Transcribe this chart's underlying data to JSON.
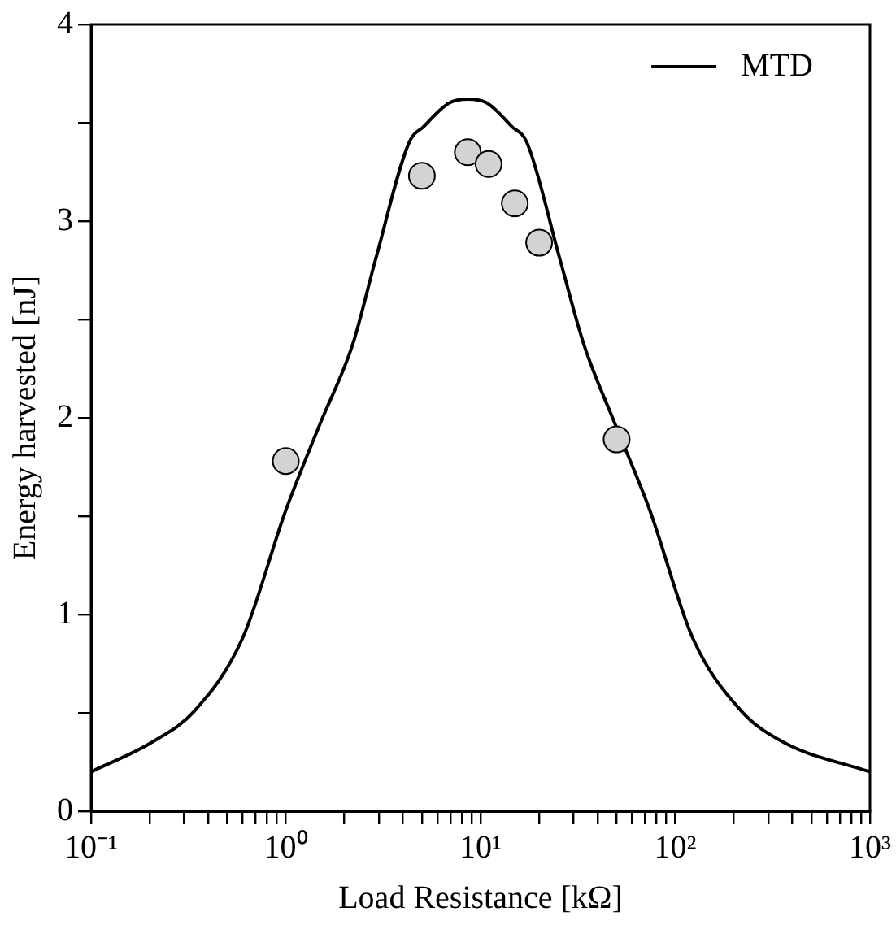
{
  "chart_data": {
    "type": "scatter",
    "xlabel": "Load Resistance [kΩ]",
    "ylabel": "Energy harvested [nJ]",
    "log": "x",
    "xlim": [
      0.1,
      1000
    ],
    "ylim": [
      0,
      4
    ],
    "xticks": [
      {
        "value": 0.1,
        "label": "10⁻¹"
      },
      {
        "value": 0.2,
        "label": null
      },
      {
        "value": 0.3,
        "label": null
      },
      {
        "value": 0.4,
        "label": null
      },
      {
        "value": 0.5,
        "label": null
      },
      {
        "value": 0.6,
        "label": null
      },
      {
        "value": 0.7,
        "label": null
      },
      {
        "value": 0.8,
        "label": null
      },
      {
        "value": 0.9,
        "label": null
      },
      {
        "value": 1,
        "label": "10⁰"
      },
      {
        "value": 2,
        "label": null
      },
      {
        "value": 3,
        "label": null
      },
      {
        "value": 4,
        "label": null
      },
      {
        "value": 5,
        "label": null
      },
      {
        "value": 6,
        "label": null
      },
      {
        "value": 7,
        "label": null
      },
      {
        "value": 8,
        "label": null
      },
      {
        "value": 9,
        "label": null
      },
      {
        "value": 10,
        "label": "10¹"
      },
      {
        "value": 20,
        "label": null
      },
      {
        "value": 30,
        "label": null
      },
      {
        "value": 40,
        "label": null
      },
      {
        "value": 50,
        "label": null
      },
      {
        "value": 60,
        "label": null
      },
      {
        "value": 70,
        "label": null
      },
      {
        "value": 80,
        "label": null
      },
      {
        "value": 90,
        "label": null
      },
      {
        "value": 100,
        "label": "10²"
      },
      {
        "value": 200,
        "label": null
      },
      {
        "value": 300,
        "label": null
      },
      {
        "value": 400,
        "label": null
      },
      {
        "value": 500,
        "label": null
      },
      {
        "value": 600,
        "label": null
      },
      {
        "value": 700,
        "label": null
      },
      {
        "value": 800,
        "label": null
      },
      {
        "value": 900,
        "label": null
      },
      {
        "value": 1000,
        "label": "10³"
      }
    ],
    "yticks": [
      0,
      {
        "value": 0.5,
        "label": null
      },
      1,
      {
        "value": 1.5,
        "label": null
      },
      2,
      {
        "value": 2.5,
        "label": null
      },
      3,
      {
        "value": 3.5,
        "label": null
      },
      4
    ],
    "grid": false,
    "legend": "top right",
    "series": [
      {
        "type": "scatter",
        "color": "#d3d3d3",
        "marker": "circle",
        "x": [
          1,
          5,
          8.6,
          11,
          15,
          20,
          50
        ],
        "values": [
          1.78,
          3.23,
          3.35,
          3.29,
          3.09,
          2.89,
          1.89
        ]
      },
      {
        "type": "line",
        "name": "MTD",
        "color": "#000000",
        "marker": "none",
        "line_style": "solid",
        "x": [
          0.1,
          0.205,
          0.34,
          0.6,
          1,
          1.5,
          2.2,
          2.9,
          4.3,
          5.1,
          6.9,
          8.6,
          10.8,
          14.5,
          17.3,
          25.5,
          34,
          49,
          74,
          123,
          218,
          360,
          1000
        ],
        "values": [
          0.2,
          0.35,
          0.51,
          0.88,
          1.53,
          1.97,
          2.37,
          2.81,
          3.4,
          3.48,
          3.6,
          3.62,
          3.6,
          3.48,
          3.4,
          2.81,
          2.37,
          1.97,
          1.53,
          0.88,
          0.51,
          0.35,
          0.2
        ]
      }
    ]
  }
}
